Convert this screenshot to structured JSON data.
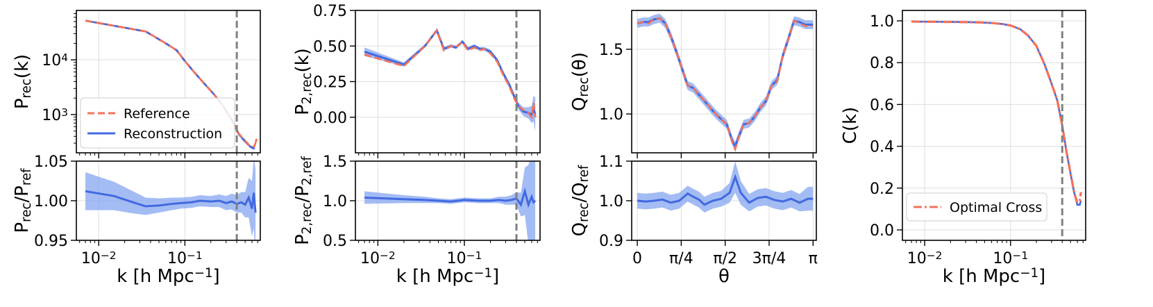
{
  "colors": {
    "reference": "#f4735a",
    "reconstruction": "#4169e1",
    "band": "#86a6f0",
    "cutoff": "#808080",
    "grid": "#dddddd",
    "optimal": "#f4735a"
  },
  "chart_data": [
    {
      "id": "p1_top",
      "type": "line",
      "xscale": "log",
      "yscale": "log",
      "xlim": [
        0.0055,
        0.75
      ],
      "ylim": [
        200,
        80000
      ],
      "ylabel": "P_rec(k)",
      "yticks": [
        1000,
        10000
      ],
      "ytick_labels": [
        "10^3",
        "10^4"
      ],
      "cutoff_k": 0.4,
      "legend": {
        "position": "lower-left",
        "entries": [
          "Reference",
          "Reconstruction"
        ]
      },
      "series": [
        {
          "name": "Reference",
          "style": "dashed",
          "x": [
            0.007,
            0.035,
            0.06,
            0.08,
            0.1,
            0.13,
            0.17,
            0.22,
            0.28,
            0.35,
            0.42,
            0.5,
            0.58,
            0.62,
            0.65,
            0.68
          ],
          "y": [
            52000,
            33000,
            20000,
            15000,
            9500,
            5800,
            3600,
            2300,
            1400,
            800,
            450,
            330,
            260,
            250,
            280,
            360
          ]
        },
        {
          "name": "Reconstruction",
          "style": "solid",
          "x": [
            0.007,
            0.035,
            0.06,
            0.08,
            0.1,
            0.13,
            0.17,
            0.22,
            0.28,
            0.35,
            0.42,
            0.5,
            0.58,
            0.62,
            0.65
          ],
          "y": [
            52000,
            33000,
            20000,
            15000,
            9500,
            5800,
            3600,
            2300,
            1400,
            800,
            440,
            320,
            255,
            240,
            245
          ]
        }
      ]
    },
    {
      "id": "p1_bottom",
      "type": "line",
      "xscale": "log",
      "xlim": [
        0.0055,
        0.75
      ],
      "ylim": [
        0.95,
        1.05
      ],
      "ylabel": "P_rec/P_ref",
      "yticks": [
        0.95,
        1.0,
        1.05
      ],
      "ytick_labels": [
        "0.95",
        "1.00",
        "1.05"
      ],
      "xticks": [
        0.01,
        0.1
      ],
      "xtick_labels": [
        "10^-2",
        "10^-1"
      ],
      "xlabel": "k [h Mpc^-1]",
      "cutoff_k": 0.4,
      "series": [
        {
          "name": "Reconstruction ratio",
          "style": "band",
          "x": [
            0.007,
            0.015,
            0.025,
            0.035,
            0.05,
            0.07,
            0.09,
            0.12,
            0.15,
            0.2,
            0.25,
            0.3,
            0.35,
            0.4,
            0.45,
            0.5,
            0.55,
            0.6,
            0.63,
            0.66
          ],
          "y": [
            1.012,
            1.006,
            0.998,
            0.993,
            0.994,
            0.996,
            0.997,
            0.998,
            1.0,
            0.999,
            1.0,
            0.997,
            0.999,
            0.996,
            0.998,
            0.995,
            1.004,
            0.99,
            1.01,
            0.985
          ],
          "err": [
            0.024,
            0.018,
            0.014,
            0.011,
            0.009,
            0.008,
            0.007,
            0.007,
            0.007,
            0.007,
            0.008,
            0.009,
            0.01,
            0.011,
            0.013,
            0.016,
            0.025,
            0.035,
            0.045,
            0.055
          ]
        }
      ]
    },
    {
      "id": "p2_top",
      "type": "line",
      "xscale": "log",
      "xlim": [
        0.0055,
        0.75
      ],
      "ylim": [
        -0.25,
        0.75
      ],
      "ylabel": "P_2,rec(k)",
      "yticks": [
        0.0,
        0.25,
        0.5,
        0.75
      ],
      "ytick_labels": [
        "0.00",
        "0.25",
        "0.50",
        "0.75"
      ],
      "cutoff_k": 0.4,
      "series": [
        {
          "name": "Reference",
          "style": "dashed",
          "x": [
            0.007,
            0.02,
            0.035,
            0.048,
            0.058,
            0.07,
            0.08,
            0.095,
            0.11,
            0.13,
            0.15,
            0.17,
            0.2,
            0.24,
            0.28,
            0.33,
            0.38,
            0.42,
            0.48,
            0.55,
            0.6,
            0.63,
            0.66
          ],
          "y": [
            0.44,
            0.36,
            0.5,
            0.61,
            0.47,
            0.5,
            0.49,
            0.53,
            0.47,
            0.49,
            0.47,
            0.48,
            0.45,
            0.39,
            0.3,
            0.22,
            0.13,
            0.08,
            0.05,
            0.03,
            0.0,
            0.1,
            0.0
          ]
        },
        {
          "name": "Reconstruction",
          "style": "band",
          "x": [
            0.007,
            0.02,
            0.035,
            0.048,
            0.058,
            0.07,
            0.08,
            0.095,
            0.11,
            0.13,
            0.15,
            0.17,
            0.2,
            0.24,
            0.28,
            0.33,
            0.38,
            0.42,
            0.48,
            0.55,
            0.6,
            0.63,
            0.66
          ],
          "y": [
            0.46,
            0.37,
            0.5,
            0.61,
            0.48,
            0.5,
            0.49,
            0.53,
            0.48,
            0.5,
            0.48,
            0.48,
            0.46,
            0.4,
            0.31,
            0.23,
            0.14,
            0.08,
            0.04,
            0.03,
            0.02,
            0.06,
            0.02
          ],
          "err": [
            0.03,
            0.015,
            0.012,
            0.012,
            0.012,
            0.012,
            0.012,
            0.012,
            0.012,
            0.012,
            0.013,
            0.013,
            0.015,
            0.015,
            0.017,
            0.018,
            0.02,
            0.025,
            0.03,
            0.04,
            0.06,
            0.09,
            0.12
          ]
        }
      ]
    },
    {
      "id": "p2_bottom",
      "type": "line",
      "xscale": "log",
      "xlim": [
        0.0055,
        0.75
      ],
      "ylim": [
        0.5,
        1.5
      ],
      "ylabel": "P_2,rec/P_2,ref",
      "yticks": [
        0.5,
        1.0,
        1.5
      ],
      "ytick_labels": [
        "0.5",
        "1.0",
        "1.5"
      ],
      "xticks": [
        0.01,
        0.1
      ],
      "xtick_labels": [
        "10^-2",
        "10^-1"
      ],
      "xlabel": "k [h Mpc^-1]",
      "cutoff_k": 0.4,
      "series": [
        {
          "name": "Reconstruction ratio",
          "style": "band",
          "x": [
            0.007,
            0.02,
            0.035,
            0.05,
            0.07,
            0.1,
            0.15,
            0.2,
            0.25,
            0.3,
            0.35,
            0.4,
            0.45,
            0.5,
            0.55,
            0.6,
            0.63,
            0.66
          ],
          "y": [
            1.04,
            1.02,
            1.01,
            1.0,
            0.99,
            1.01,
            1.0,
            1.0,
            1.01,
            1.0,
            1.01,
            1.03,
            0.95,
            1.12,
            0.95,
            1.05,
            0.98,
            1.0
          ],
          "err": [
            0.08,
            0.05,
            0.04,
            0.03,
            0.03,
            0.03,
            0.03,
            0.03,
            0.04,
            0.05,
            0.06,
            0.08,
            0.15,
            0.3,
            0.5,
            0.6,
            0.6,
            0.6
          ]
        }
      ]
    },
    {
      "id": "p3_top",
      "type": "line",
      "xscale": "linear",
      "xlim": [
        -0.1,
        3.2
      ],
      "ylim": [
        0.7,
        1.8
      ],
      "ylabel": "Q_rec(θ)",
      "yticks": [
        1.0,
        1.5
      ],
      "ytick_labels": [
        "1.0",
        "1.5"
      ],
      "series": [
        {
          "name": "Reference",
          "style": "dashed",
          "x": [
            0.0,
            0.1,
            0.2,
            0.3,
            0.4,
            0.5,
            0.6,
            0.7,
            0.8,
            0.9,
            1.0,
            1.1,
            1.2,
            1.3,
            1.4,
            1.5,
            1.6,
            1.7,
            1.75,
            1.8,
            1.9,
            2.0,
            2.1,
            2.2,
            2.3,
            2.4,
            2.5,
            2.6,
            2.7,
            2.8,
            2.9,
            3.0,
            3.14
          ],
          "y": [
            1.7,
            1.71,
            1.7,
            1.73,
            1.74,
            1.7,
            1.6,
            1.48,
            1.35,
            1.22,
            1.2,
            1.15,
            1.1,
            1.05,
            1.0,
            0.96,
            0.92,
            0.78,
            0.73,
            0.8,
            0.92,
            0.93,
            0.98,
            1.05,
            1.1,
            1.22,
            1.25,
            1.45,
            1.58,
            1.72,
            1.7,
            1.68,
            1.68
          ]
        },
        {
          "name": "Reconstruction",
          "style": "band",
          "x": [
            0.0,
            0.1,
            0.2,
            0.3,
            0.4,
            0.5,
            0.6,
            0.7,
            0.8,
            0.9,
            1.0,
            1.1,
            1.2,
            1.3,
            1.4,
            1.5,
            1.6,
            1.7,
            1.75,
            1.8,
            1.9,
            2.0,
            2.1,
            2.2,
            2.3,
            2.4,
            2.5,
            2.6,
            2.7,
            2.8,
            2.9,
            3.0,
            3.14
          ],
          "y": [
            1.7,
            1.71,
            1.71,
            1.73,
            1.74,
            1.7,
            1.6,
            1.48,
            1.35,
            1.22,
            1.2,
            1.15,
            1.1,
            1.05,
            1.0,
            0.96,
            0.92,
            0.79,
            0.75,
            0.81,
            0.92,
            0.93,
            0.98,
            1.05,
            1.1,
            1.22,
            1.26,
            1.45,
            1.58,
            1.72,
            1.71,
            1.69,
            1.69
          ]
        }
      ],
      "band_err": 0.035
    },
    {
      "id": "p3_bottom",
      "type": "line",
      "xscale": "linear",
      "xlim": [
        -0.1,
        3.2
      ],
      "ylim": [
        0.9,
        1.1
      ],
      "ylabel": "Q_rec/Q_ref",
      "yticks": [
        0.9,
        1.0,
        1.1
      ],
      "ytick_labels": [
        "0.9",
        "1.0",
        "1.1"
      ],
      "xticks": [
        0,
        0.7854,
        1.5708,
        2.3562,
        3.1416
      ],
      "xtick_labels": [
        "0",
        "π/4",
        "π/2",
        "3π/4",
        "π"
      ],
      "xlabel": "θ",
      "series": [
        {
          "name": "Reconstruction ratio",
          "style": "band",
          "x": [
            0.0,
            0.15,
            0.3,
            0.45,
            0.6,
            0.75,
            0.9,
            1.0,
            1.1,
            1.2,
            1.35,
            1.5,
            1.65,
            1.75,
            1.85,
            2.0,
            2.15,
            2.3,
            2.45,
            2.6,
            2.75,
            2.9,
            3.05,
            3.14
          ],
          "y": [
            1.0,
            0.998,
            1.0,
            1.003,
            0.995,
            1.0,
            1.018,
            1.01,
            1.003,
            0.99,
            1.0,
            1.005,
            1.02,
            1.06,
            1.02,
            0.995,
            1.007,
            1.01,
            1.002,
            0.998,
            1.005,
            0.995,
            1.005,
            1.005
          ],
          "err": [
            0.02,
            0.02,
            0.02,
            0.02,
            0.02,
            0.02,
            0.02,
            0.02,
            0.02,
            0.02,
            0.02,
            0.02,
            0.025,
            0.04,
            0.03,
            0.022,
            0.022,
            0.022,
            0.022,
            0.022,
            0.022,
            0.022,
            0.03,
            0.03
          ]
        }
      ]
    },
    {
      "id": "p4",
      "type": "line",
      "xscale": "log",
      "xlim": [
        0.0055,
        0.75
      ],
      "ylim": [
        -0.05,
        1.05
      ],
      "ylabel": "C(k)",
      "yticks": [
        0.0,
        0.2,
        0.4,
        0.6,
        0.8,
        1.0
      ],
      "ytick_labels": [
        "0.0",
        "0.2",
        "0.4",
        "0.6",
        "0.8",
        "1.0"
      ],
      "xticks": [
        0.01,
        0.1
      ],
      "xtick_labels": [
        "10^-2",
        "10^-1"
      ],
      "xlabel": "k [h Mpc^-1]",
      "cutoff_k": 0.4,
      "legend": {
        "position": "lower-left",
        "entries": [
          "Optimal Cross"
        ]
      },
      "series": [
        {
          "name": "Optimal Cross",
          "style": "dashdot",
          "x": [
            0.007,
            0.01,
            0.02,
            0.04,
            0.06,
            0.08,
            0.1,
            0.13,
            0.16,
            0.2,
            0.25,
            0.3,
            0.35,
            0.4,
            0.45,
            0.5,
            0.55,
            0.6,
            0.64,
            0.66
          ],
          "y": [
            0.997,
            0.996,
            0.995,
            0.993,
            0.99,
            0.985,
            0.978,
            0.96,
            0.93,
            0.88,
            0.79,
            0.7,
            0.62,
            0.5,
            0.37,
            0.27,
            0.18,
            0.13,
            0.14,
            0.18
          ]
        },
        {
          "name": "Reconstruction",
          "style": "solid",
          "x": [
            0.007,
            0.01,
            0.02,
            0.04,
            0.06,
            0.08,
            0.1,
            0.13,
            0.16,
            0.2,
            0.25,
            0.3,
            0.35,
            0.4,
            0.45,
            0.5,
            0.55,
            0.6,
            0.64,
            0.66
          ],
          "y": [
            0.997,
            0.996,
            0.995,
            0.993,
            0.99,
            0.985,
            0.978,
            0.96,
            0.93,
            0.88,
            0.79,
            0.7,
            0.62,
            0.5,
            0.37,
            0.27,
            0.18,
            0.12,
            0.12,
            0.14
          ]
        }
      ]
    }
  ]
}
